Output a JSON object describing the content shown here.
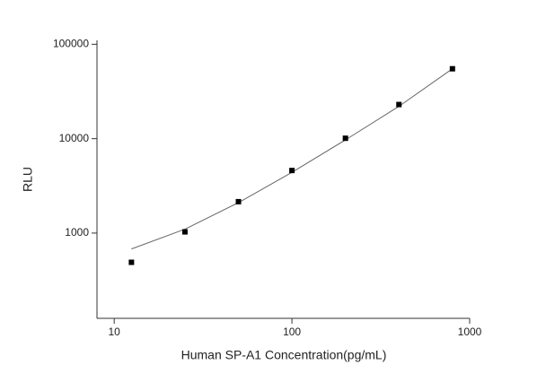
{
  "chart_data": {
    "type": "scatter",
    "x_label": "Human SP-A1 Concentration(pg/mL)",
    "y_label": "RLU",
    "log_x": true,
    "log_y": true,
    "xlim": [
      8,
      1000
    ],
    "ylim": [
      125,
      110000
    ],
    "xticks": [
      10,
      100,
      1000
    ],
    "yticks": [
      1000,
      10000,
      100000
    ],
    "points": {
      "color": "#000000",
      "x": [
        12.5,
        25,
        50,
        100,
        200,
        400,
        800
      ],
      "y": [
        490,
        1030,
        2150,
        4600,
        10100,
        23000,
        55000
      ]
    },
    "curve": {
      "color": "#666666",
      "x": [
        12.5,
        25,
        50,
        100,
        200,
        400,
        800
      ],
      "y": [
        680,
        1100,
        2100,
        4400,
        9700,
        22000,
        55000
      ]
    }
  }
}
